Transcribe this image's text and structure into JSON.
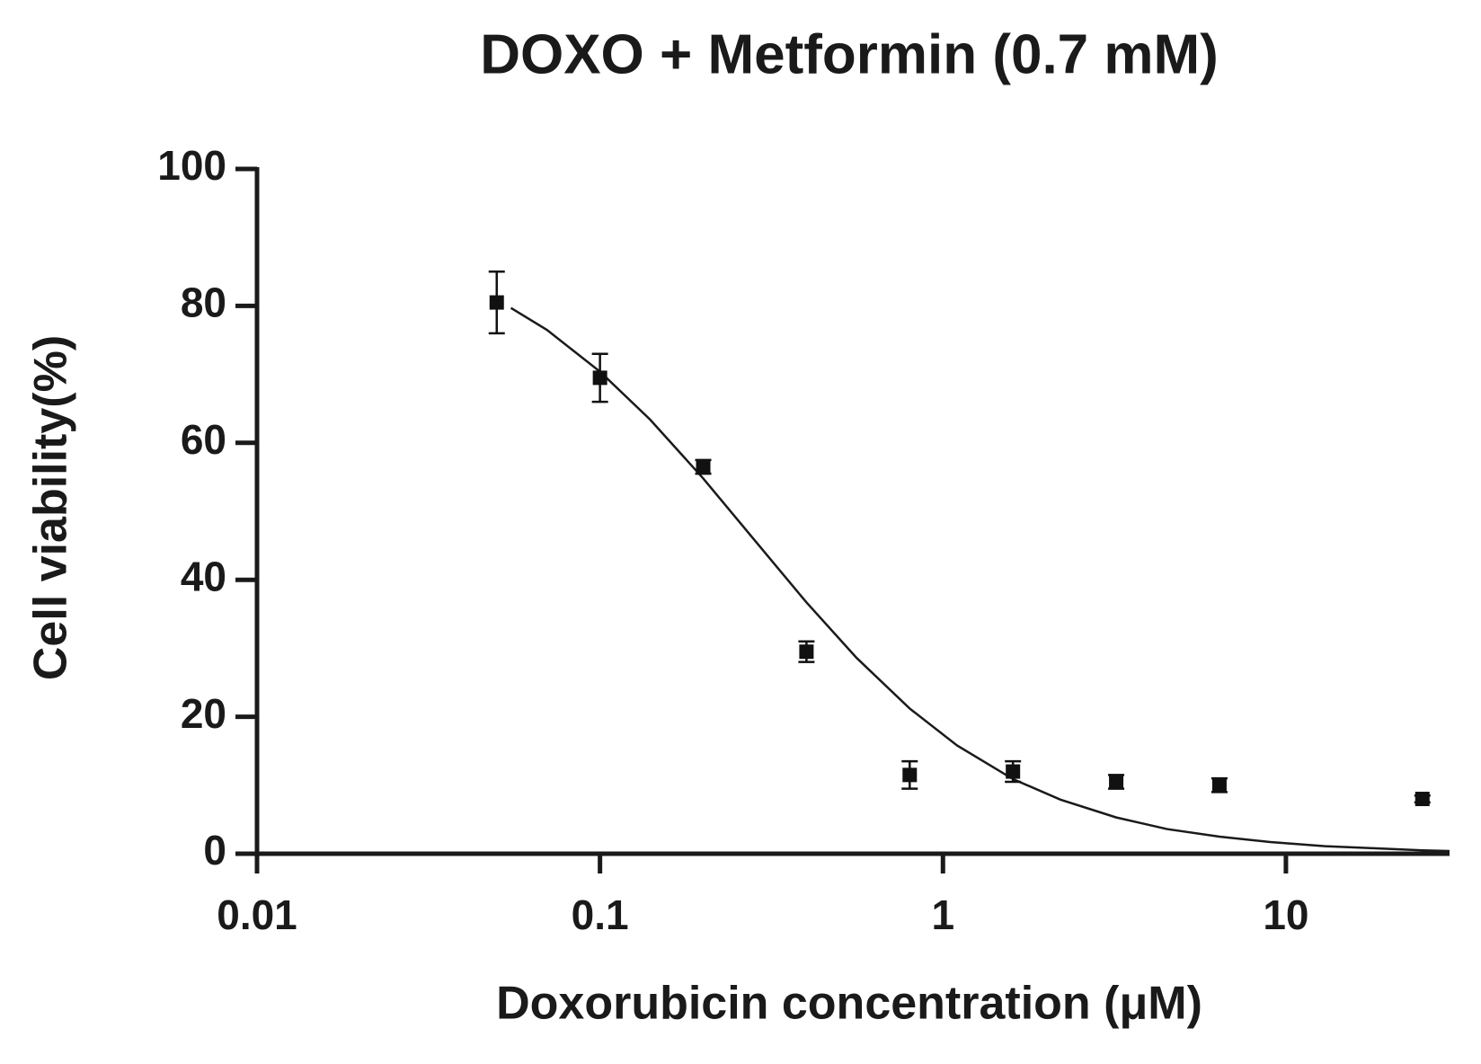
{
  "chart_data": {
    "type": "scatter",
    "title": "DOXO + Metformin (0.7 mM)",
    "x_label": "Doxorubicin concentration (μM)",
    "y_label": "Cell viability(%)",
    "x": [
      0.05,
      0.1,
      0.2,
      0.4,
      0.8,
      1.6,
      3.2,
      6.4,
      25
    ],
    "values": [
      80.5,
      69.5,
      56.5,
      29.5,
      11.5,
      12,
      10.5,
      10,
      8
    ],
    "errors": [
      4.5,
      3.5,
      1,
      1.5,
      2,
      1.5,
      1,
      1,
      0.5
    ],
    "color": "#111111",
    "fit": {
      "x": [
        0.055,
        0.07,
        0.1,
        0.14,
        0.2,
        0.28,
        0.4,
        0.56,
        0.8,
        1.1,
        1.6,
        2.2,
        3.2,
        4.5,
        6.4,
        9,
        13,
        18,
        25,
        30
      ],
      "values": [
        79.7,
        76.5,
        70.4,
        63.4,
        54.8,
        46.0,
        36.7,
        28.6,
        21.2,
        15.8,
        10.9,
        7.9,
        5.3,
        3.6,
        2.5,
        1.7,
        1.1,
        0.8,
        0.5,
        0.4
      ]
    },
    "xscale": "log",
    "xlim": [
      0.01,
      30
    ],
    "ylim": [
      0,
      100
    ],
    "xticks": [
      0.01,
      0.1,
      1,
      10
    ],
    "yticks": [
      0,
      20,
      40,
      60,
      80,
      100
    ]
  }
}
